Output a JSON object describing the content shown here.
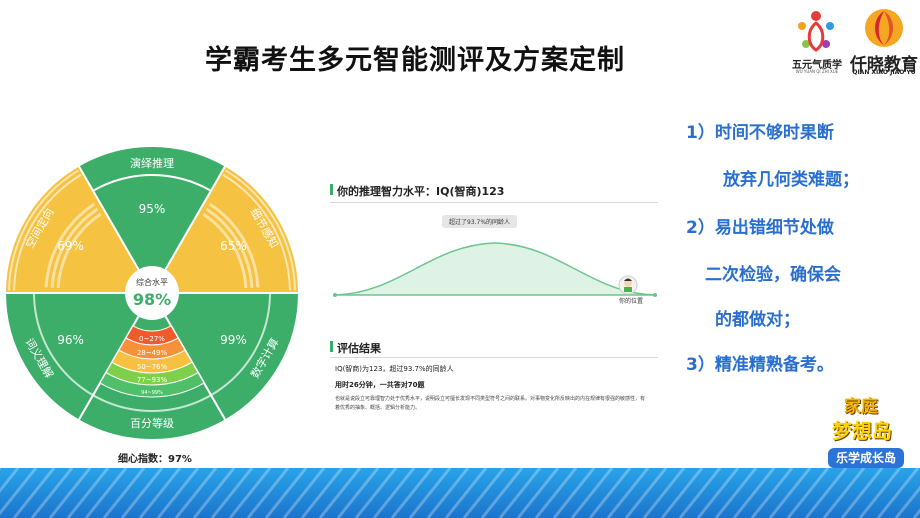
{
  "title": "学霸考生多元智能测评及方案定制",
  "logos": {
    "wuyuan": {
      "name": "五元气质学",
      "sub": "WU YUAN QI ZHI XUE"
    },
    "qianxiao": {
      "name": "仟晓教育",
      "sub": "QIAN XIAO JIAO YU"
    }
  },
  "radial": {
    "sectors": [
      {
        "label": "演绎推理",
        "value": "95%"
      },
      {
        "label": "细节感知",
        "value": "65%"
      },
      {
        "label": "数字计算",
        "value": "99%"
      },
      {
        "label": "百分等级",
        "value": ""
      },
      {
        "label": "词义理解",
        "value": "96%"
      },
      {
        "label": "空间定向",
        "value": "69%"
      }
    ],
    "center_label": "综合水平",
    "center_value": "98%",
    "bands": [
      "0~27%",
      "28~49%",
      "50~76%",
      "77~93%",
      "94~99%"
    ],
    "fine_label": "细心指数：97%"
  },
  "report": {
    "section1_title": "你的推理智力水平：IQ(智商)123",
    "tag": "超过了93.7%的同龄人",
    "position_label": "你的位置",
    "section2_title": "评估结果",
    "result_line1": "IQ(智商)为123，超过93.7%的同龄人",
    "result_line2": "用时26分钟，一共答对70题",
    "result_desc": "也就是说段立可靠理智力处于优秀水平，说明段立可擅长发现不同类型符号之间的联系。对事物变化所反映出的内在规律有很强的敏感性，有着优秀的抽象、概括、逻辑分析能力。"
  },
  "points": [
    "1）时间不够时果断",
    "放弃几何类难题；",
    "2）易出错细节处做",
    "二次检验，确保会",
    "的都做对；",
    "3）精准精熟备考。"
  ],
  "badge": {
    "line1": "家庭",
    "line2": "梦想岛",
    "line3": "乐学成长岛"
  },
  "colors": {
    "green": "#3cae6a",
    "yellow": "#f5c242",
    "blue": "#2a6fd0",
    "curve": "#6cc58e"
  }
}
